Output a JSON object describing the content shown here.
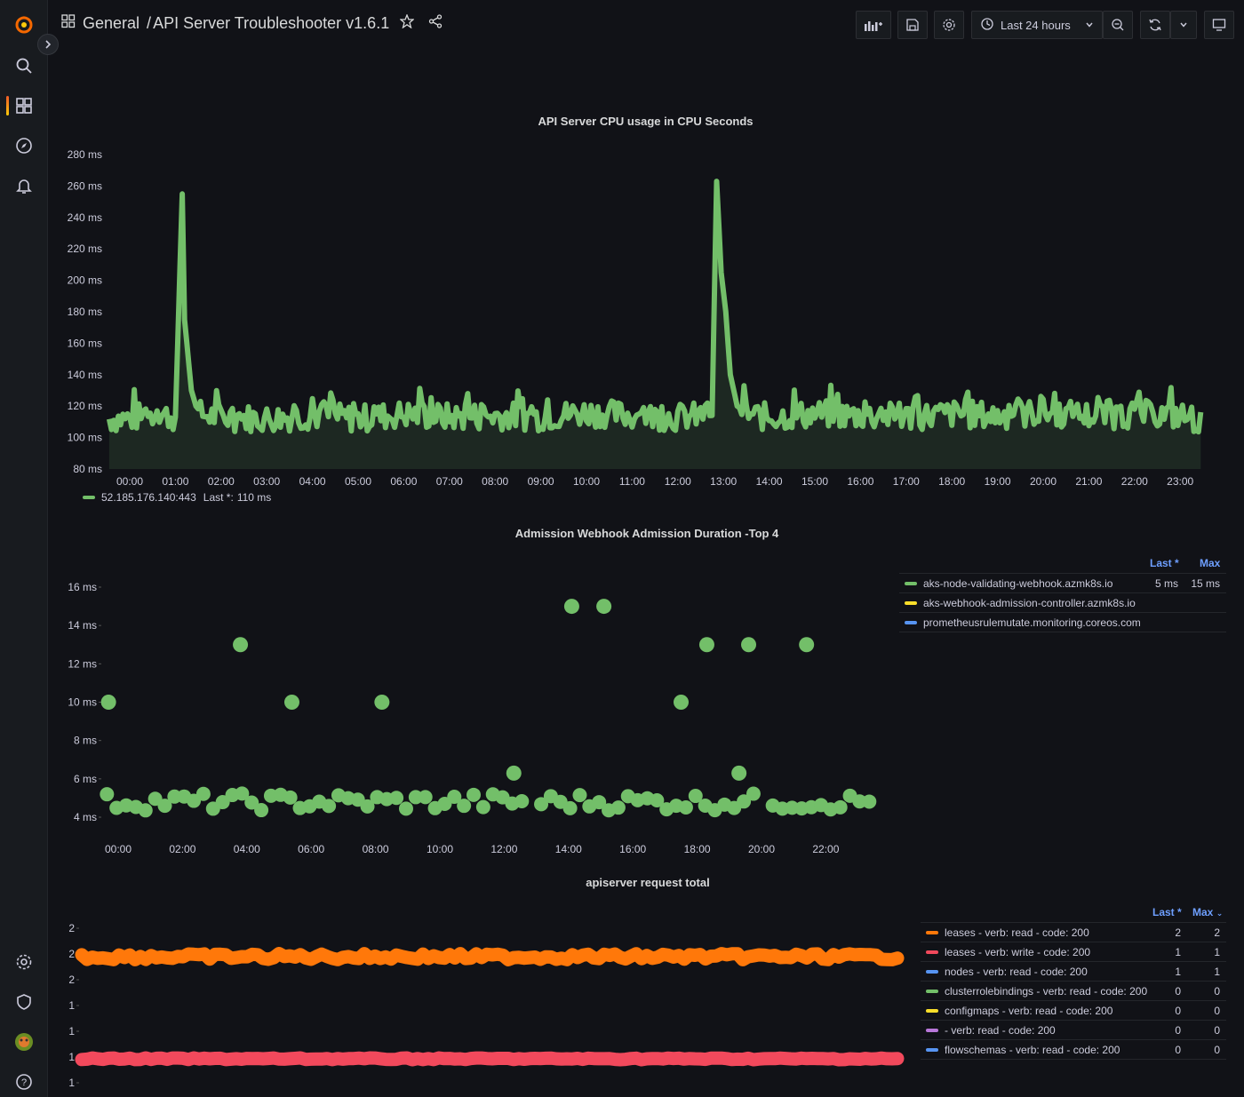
{
  "breadcrumb": {
    "folder": "General",
    "separator": "/",
    "dashboard": "API Server Troubleshooter v1.6.1"
  },
  "toolbar": {
    "time_range": "Last 24 hours"
  },
  "icons": {
    "logo": "grafana-logo",
    "search": "search-icon",
    "dashboards": "dashboards-icon",
    "explore": "compass-icon",
    "alerting": "bell-icon",
    "config": "gear-icon",
    "admin": "shield-icon",
    "profile": "avatar",
    "help": "help-icon"
  },
  "colors": {
    "green": "#73bf69",
    "orange": "#ff780a",
    "red": "#f2495c",
    "blue": "#5794f2",
    "yellow": "#fade2a",
    "purple": "#b877d9"
  },
  "panel_cpu": {
    "title": "API Server CPU usage in CPU Seconds",
    "legend": {
      "series": "52.185.176.140:443",
      "last_label": "Last *:",
      "last_value": "110 ms"
    }
  },
  "panel_webhook": {
    "title": "Admission Webhook Admission Duration -Top 4",
    "legend_headers": {
      "last": "Last *",
      "max": "Max"
    },
    "legend": [
      {
        "name": "aks-node-validating-webhook.azmk8s.io",
        "color": "#73bf69",
        "last": "5 ms",
        "max": "15 ms"
      },
      {
        "name": "aks-webhook-admission-controller.azmk8s.io",
        "color": "#fade2a",
        "last": "",
        "max": ""
      },
      {
        "name": "prometheusrulemutate.monitoring.coreos.com",
        "color": "#5794f2",
        "last": "",
        "max": ""
      }
    ]
  },
  "panel_requests": {
    "title": "apiserver request total",
    "legend_headers": {
      "last": "Last *",
      "max": "Max"
    },
    "legend": [
      {
        "name": "leases - verb: read - code: 200",
        "color": "#ff780a",
        "last": "2",
        "max": "2"
      },
      {
        "name": "leases - verb: write - code: 200",
        "color": "#f2495c",
        "last": "1",
        "max": "1"
      },
      {
        "name": "nodes - verb: read - code: 200",
        "color": "#5794f2",
        "last": "1",
        "max": "1"
      },
      {
        "name": "clusterrolebindings - verb: read - code: 200",
        "color": "#73bf69",
        "last": "0",
        "max": "0"
      },
      {
        "name": "configmaps - verb: read - code: 200",
        "color": "#fade2a",
        "last": "0",
        "max": "0"
      },
      {
        "name": "- verb: read - code: 200",
        "color": "#b877d9",
        "last": "0",
        "max": "0"
      },
      {
        "name": "flowschemas - verb: read - code: 200",
        "color": "#5794f2",
        "last": "0",
        "max": "0"
      }
    ]
  },
  "chart_data": [
    {
      "type": "area",
      "title": "API Server CPU usage in CPU Seconds",
      "y_ticks": [
        "80 ms",
        "100 ms",
        "120 ms",
        "140 ms",
        "160 ms",
        "180 ms",
        "200 ms",
        "220 ms",
        "240 ms",
        "260 ms",
        "280 ms"
      ],
      "x_ticks": [
        "00:00",
        "01:00",
        "02:00",
        "03:00",
        "04:00",
        "05:00",
        "06:00",
        "07:00",
        "08:00",
        "09:00",
        "10:00",
        "11:00",
        "12:00",
        "13:00",
        "14:00",
        "15:00",
        "16:00",
        "17:00",
        "18:00",
        "19:00",
        "20:00",
        "21:00",
        "22:00",
        "23:00"
      ],
      "ylim": [
        80,
        280
      ],
      "series": [
        {
          "name": "52.185.176.140:443",
          "color": "#73bf69",
          "x_hours": [
            0,
            0.5,
            1.0,
            1.15,
            1.2,
            1.25,
            1.35,
            1.5,
            2,
            3,
            4,
            5,
            6,
            7,
            8,
            9,
            10,
            11,
            12,
            12.75,
            12.85,
            12.95,
            13.05,
            13.15,
            13.3,
            13.6,
            14,
            15,
            16,
            17,
            18,
            19,
            20,
            21,
            22,
            23,
            23.5
          ],
          "values": [
            112,
            115,
            113,
            255,
            175,
            160,
            130,
            115,
            113,
            112,
            114,
            112,
            115,
            113,
            114,
            113,
            116,
            114,
            113,
            114,
            263,
            205,
            180,
            140,
            120,
            114,
            113,
            115,
            114,
            113,
            115,
            114,
            116,
            114,
            115,
            114,
            110
          ]
        }
      ],
      "last": "110 ms"
    },
    {
      "type": "scatter",
      "title": "Admission Webhook Admission Duration -Top 4",
      "y_ticks": [
        "4 ms",
        "6 ms",
        "8 ms",
        "10 ms",
        "12 ms",
        "14 ms",
        "16 ms"
      ],
      "x_ticks": [
        "00:00",
        "02:00",
        "04:00",
        "06:00",
        "08:00",
        "10:00",
        "12:00",
        "14:00",
        "16:00",
        "18:00",
        "20:00",
        "22:00"
      ],
      "ylim": [
        4,
        16
      ],
      "series": [
        {
          "name": "aks-node-validating-webhook.azmk8s.io",
          "color": "#73bf69",
          "outliers": [
            {
              "x_hours": -0.3,
              "y": 10
            },
            {
              "x_hours": 3.8,
              "y": 13
            },
            {
              "x_hours": 5.4,
              "y": 10
            },
            {
              "x_hours": 8.2,
              "y": 10
            },
            {
              "x_hours": 12.3,
              "y": 6.3
            },
            {
              "x_hours": 14.1,
              "y": 15
            },
            {
              "x_hours": 15.1,
              "y": 15
            },
            {
              "x_hours": 17.5,
              "y": 10
            },
            {
              "x_hours": 18.3,
              "y": 13
            },
            {
              "x_hours": 19.3,
              "y": 6.3
            },
            {
              "x_hours": 19.6,
              "y": 13
            },
            {
              "x_hours": 21.4,
              "y": 13
            }
          ],
          "baseline_ms": 4.8
        }
      ]
    },
    {
      "type": "line",
      "title": "apiserver request total",
      "y_ticks": [
        "1",
        "1",
        "1",
        "1",
        "2",
        "2",
        "2"
      ],
      "series": [
        {
          "name": "leases - verb: read - code: 200",
          "color": "#ff780a",
          "value": 2
        },
        {
          "name": "leases - verb: write - code: 200",
          "color": "#f2495c",
          "value": 1
        }
      ]
    }
  ]
}
